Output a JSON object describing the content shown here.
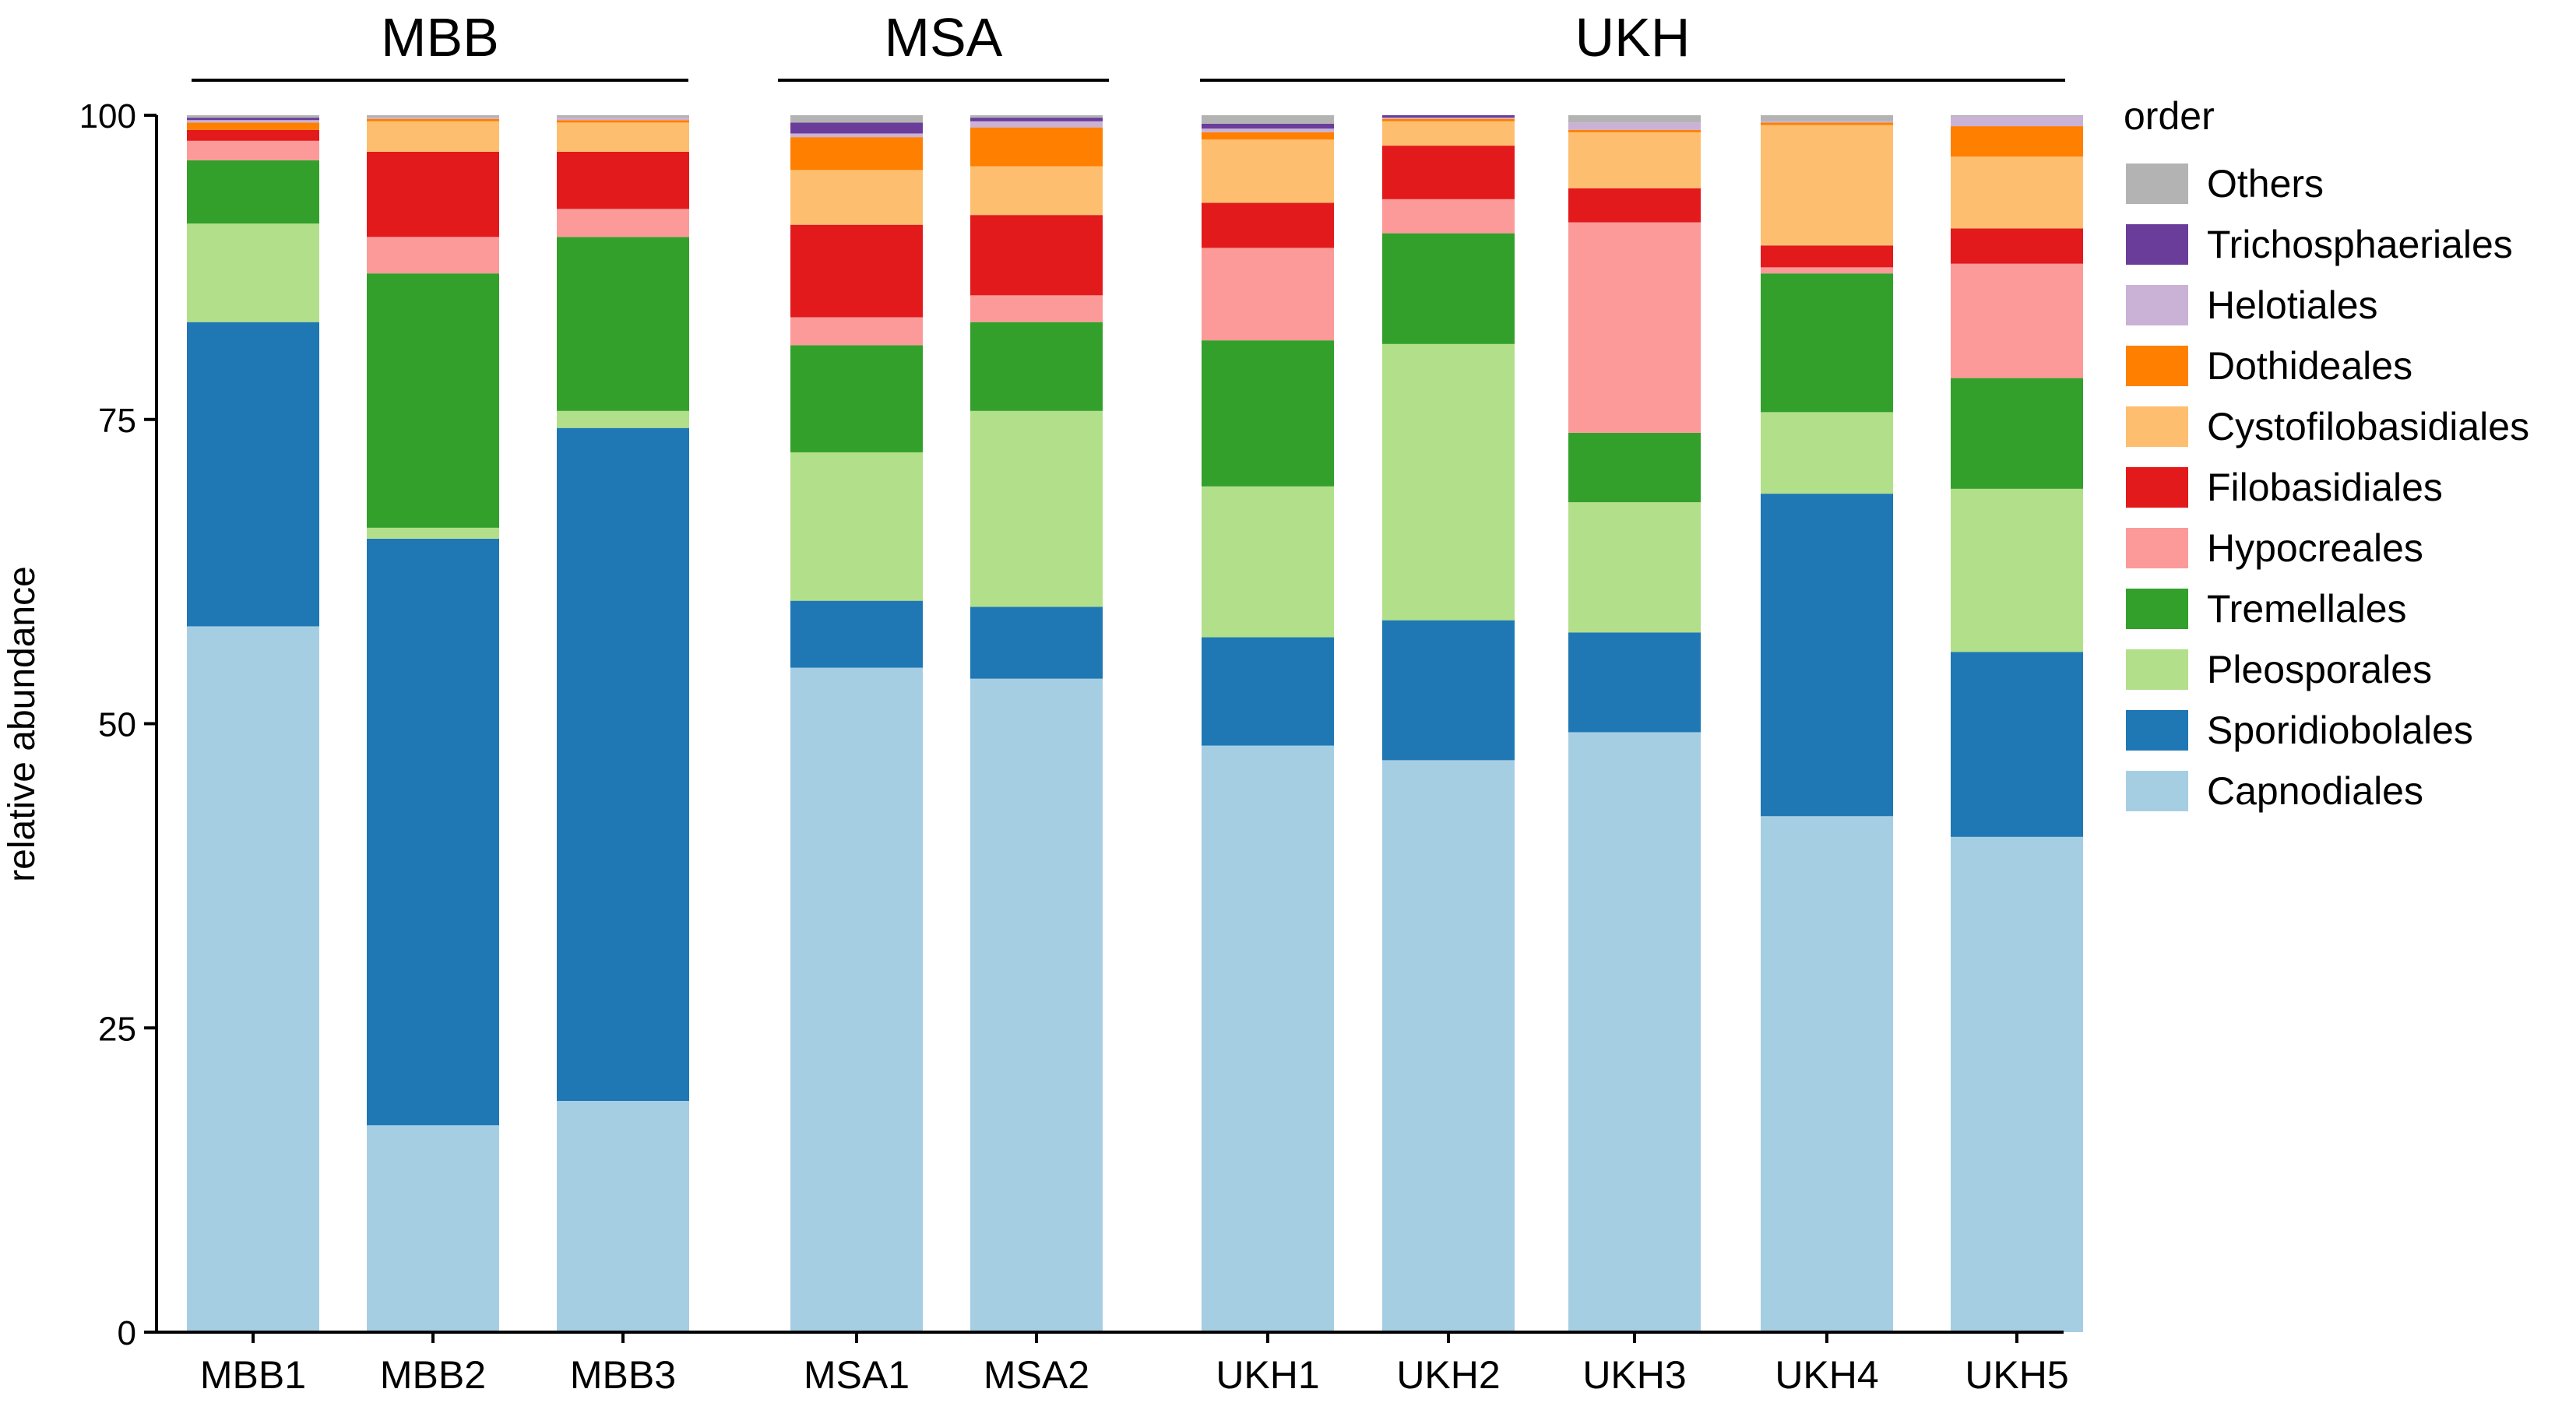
{
  "chart_data": {
    "type": "bar",
    "stacked": true,
    "title": "",
    "xlabel": "",
    "ylabel": "relative abundance",
    "ylim": [
      0,
      100
    ],
    "yticks": [
      0,
      25,
      50,
      75,
      100
    ],
    "legend_title": "order",
    "legend_position": "right",
    "groups": [
      {
        "label": "MBB",
        "categories": [
          "MBB1",
          "MBB2",
          "MBB3"
        ]
      },
      {
        "label": "MSA",
        "categories": [
          "MSA1",
          "MSA2"
        ]
      },
      {
        "label": "UKH",
        "categories": [
          "UKH1",
          "UKH2",
          "UKH3",
          "UKH4",
          "UKH5"
        ]
      }
    ],
    "categories": [
      "MBB1",
      "MBB2",
      "MBB3",
      "MSA1",
      "MSA2",
      "UKH1",
      "UKH2",
      "UKH3",
      "UKH4",
      "UKH5"
    ],
    "series": [
      {
        "name": "Capnodiales",
        "color": "#A6CEE3",
        "values": [
          58,
          17,
          19,
          54.6,
          53.7,
          48.2,
          47,
          49.3,
          42.4,
          40.7
        ]
      },
      {
        "name": "Sporidiobolales",
        "color": "#1F78B4",
        "values": [
          25,
          48.2,
          55.3,
          5.5,
          5.9,
          8.9,
          11.5,
          8.2,
          26.5,
          15.2
        ]
      },
      {
        "name": "Pleosporales",
        "color": "#B2DF8A",
        "values": [
          8.1,
          0.9,
          1.4,
          12.2,
          16.1,
          12.4,
          22.7,
          10.7,
          6.7,
          13.4
        ]
      },
      {
        "name": "Tremellales",
        "color": "#33A02C",
        "values": [
          5.2,
          20.9,
          14.3,
          8.8,
          7.3,
          12,
          9.1,
          5.7,
          11.4,
          9.1
        ]
      },
      {
        "name": "Hypocreales",
        "color": "#FB9A99",
        "values": [
          1.6,
          3,
          2.3,
          2.3,
          2.2,
          7.6,
          2.8,
          17.3,
          0.5,
          9.4
        ]
      },
      {
        "name": "Filobasidiales",
        "color": "#E31A1C",
        "values": [
          0.9,
          7,
          4.7,
          7.6,
          6.6,
          3.7,
          4.4,
          2.8,
          1.8,
          2.9
        ]
      },
      {
        "name": "Cystofilobasidiales",
        "color": "#FDBF6F",
        "values": [
          0,
          2.5,
          2.4,
          4.5,
          4,
          5.2,
          2,
          4.6,
          9.9,
          5.9
        ]
      },
      {
        "name": "Dothideales",
        "color": "#FF7F00",
        "values": [
          0.6,
          0.2,
          0.2,
          2.7,
          3.2,
          0.6,
          0.2,
          0.2,
          0.2,
          2.5
        ]
      },
      {
        "name": "Helotiales",
        "color": "#CAB2D6",
        "values": [
          0.2,
          0.1,
          0.2,
          0.3,
          0.5,
          0.3,
          0.1,
          0.6,
          0.1,
          0.8
        ]
      },
      {
        "name": "Trichosphaeriales",
        "color": "#6A3D9A",
        "values": [
          0.2,
          0,
          0,
          0.9,
          0.3,
          0.4,
          0.2,
          0,
          0,
          0
        ]
      },
      {
        "name": "Others",
        "color": "#B3B3B3",
        "values": [
          0.2,
          0.2,
          0.2,
          0.6,
          0.2,
          0.7,
          0,
          0.6,
          0.5,
          0.1
        ]
      }
    ]
  }
}
